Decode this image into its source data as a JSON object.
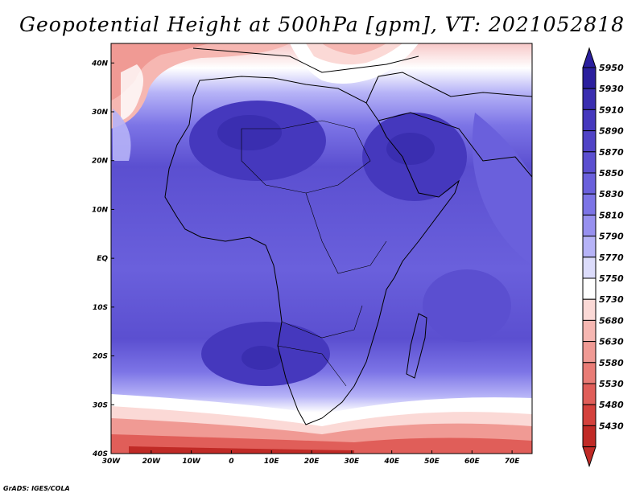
{
  "title": "Geopotential Height at 500hPa [gpm], VT: 2021052818",
  "credit": "GrADS: IGES/COLA",
  "map": {
    "lon_labels": [
      "30W",
      "20W",
      "10W",
      "0",
      "10E",
      "20E",
      "30E",
      "40E",
      "50E",
      "60E",
      "70E"
    ],
    "lat_labels": [
      "40N",
      "30N",
      "20N",
      "10N",
      "EQ",
      "10S",
      "20S",
      "30S",
      "40S"
    ],
    "lon_range": [
      -30,
      75
    ],
    "lat_range": [
      -40,
      44
    ]
  },
  "colorbar": {
    "levels": [
      "5950",
      "5930",
      "5910",
      "5890",
      "5870",
      "5850",
      "5830",
      "5810",
      "5790",
      "5770",
      "5750",
      "5730",
      "5680",
      "5630",
      "5580",
      "5530",
      "5480",
      "5430"
    ],
    "colors": [
      "#2b1f9e",
      "#3a2eb0",
      "#4538bd",
      "#5043c6",
      "#5b4fd0",
      "#6a60dc",
      "#7c74e6",
      "#9790ef",
      "#b6b3f7",
      "#dcdcfb",
      "#ffffff",
      "#fbd9d6",
      "#f6b7b2",
      "#f09a94",
      "#e97c76",
      "#e05e59",
      "#d4413c",
      "#c02a26"
    ]
  }
}
